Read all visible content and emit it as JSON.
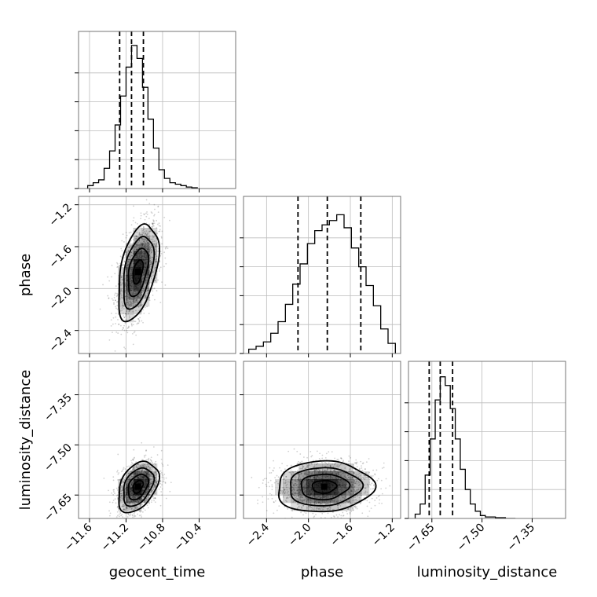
{
  "chart_data": {
    "type": "corner",
    "parameters": [
      "geocent_time",
      "phase",
      "luminosity_distance"
    ],
    "axes": {
      "geocent_time": {
        "range": [
          -11.72,
          -10.0
        ],
        "ticks": [
          -11.6,
          -11.2,
          -10.8,
          -10.4
        ],
        "tick_labels": [
          "−11.6",
          "−11.2",
          "−10.8",
          "−10.4"
        ],
        "label": "geocent_time"
      },
      "phase": {
        "range": [
          -2.62,
          -1.12
        ],
        "ticks": [
          -2.4,
          -2.0,
          -1.6,
          -1.2
        ],
        "tick_labels": [
          "−2.4",
          "−2.0",
          "−1.6",
          "−1.2"
        ],
        "label": "phase"
      },
      "luminosity_distance": {
        "range": [
          -7.72,
          -7.25
        ],
        "ticks": [
          -7.65,
          -7.5,
          -7.35
        ],
        "tick_labels": [
          "−7.65",
          "−7.50",
          "−7.35"
        ],
        "label": "luminosity_distance"
      }
    },
    "histograms": [
      {
        "parameter": "geocent_time",
        "bin_edges": [
          -11.62,
          -11.56,
          -11.5,
          -11.44,
          -11.38,
          -11.32,
          -11.26,
          -11.2,
          -11.14,
          -11.08,
          -11.02,
          -10.96,
          -10.9,
          -10.84,
          -10.78,
          -10.72,
          -10.66,
          -10.6,
          -10.54,
          -10.48,
          -10.42
        ],
        "counts": [
          0.02,
          0.04,
          0.06,
          0.14,
          0.26,
          0.44,
          0.64,
          0.84,
          0.99,
          0.9,
          0.7,
          0.48,
          0.28,
          0.13,
          0.07,
          0.04,
          0.03,
          0.02,
          0.01,
          0.005
        ],
        "quantiles": [
          -11.27,
          -11.14,
          -11.01
        ]
      },
      {
        "parameter": "phase",
        "bin_edges": [
          -2.57,
          -2.5,
          -2.43,
          -2.36,
          -2.29,
          -2.22,
          -2.15,
          -2.08,
          -2.01,
          -1.94,
          -1.87,
          -1.8,
          -1.73,
          -1.66,
          -1.59,
          -1.52,
          -1.45,
          -1.38,
          -1.31,
          -1.24,
          -1.17
        ],
        "counts": [
          0.03,
          0.05,
          0.08,
          0.14,
          0.22,
          0.34,
          0.48,
          0.62,
          0.76,
          0.85,
          0.89,
          0.92,
          0.96,
          0.87,
          0.73,
          0.6,
          0.47,
          0.33,
          0.17,
          0.07
        ],
        "quantiles": [
          -2.1,
          -1.82,
          -1.5
        ]
      },
      {
        "parameter": "luminosity_distance",
        "bin_edges": [
          -7.7,
          -7.685,
          -7.67,
          -7.655,
          -7.64,
          -7.625,
          -7.61,
          -7.595,
          -7.58,
          -7.565,
          -7.55,
          -7.535,
          -7.52,
          -7.505,
          -7.49,
          -7.475,
          -7.46,
          -7.445,
          -7.43,
          -7.415,
          -7.4
        ],
        "counts": [
          0.03,
          0.1,
          0.3,
          0.55,
          0.82,
          0.98,
          0.92,
          0.76,
          0.55,
          0.34,
          0.2,
          0.1,
          0.05,
          0.02,
          0.01,
          0.01,
          0.005,
          0.005,
          0,
          0
        ],
        "quantiles": [
          -7.658,
          -7.625,
          -7.588
        ]
      }
    ],
    "pair_panels": [
      {
        "x": "geocent_time",
        "y": "phase",
        "center": [
          -11.07,
          -1.84
        ],
        "sigma": [
          0.11,
          0.23
        ],
        "rho": 0.45,
        "contour_levels": [
          0.5,
          1.0,
          1.5,
          2.0
        ]
      },
      {
        "x": "geocent_time",
        "y": "luminosity_distance",
        "center": [
          -11.07,
          -7.625
        ],
        "sigma": [
          0.11,
          0.038
        ],
        "rho": 0.38,
        "contour_levels": [
          0.5,
          1.0,
          1.5,
          2.0
        ]
      },
      {
        "x": "phase",
        "y": "luminosity_distance",
        "center": [
          -1.85,
          -7.625
        ],
        "sigma": [
          0.23,
          0.038
        ],
        "rho": 0.05,
        "contour_levels": [
          0.5,
          1.0,
          1.5,
          2.0
        ]
      }
    ],
    "grid": true,
    "samples_shown": "scatter points"
  }
}
